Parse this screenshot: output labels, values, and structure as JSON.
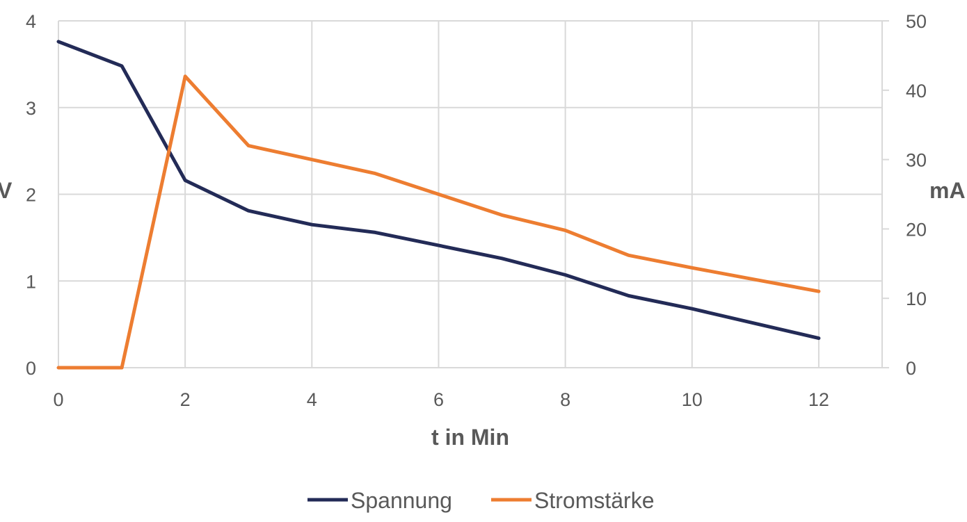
{
  "chart_data": {
    "type": "line",
    "xlabel": "t in Min",
    "ylabel": "V",
    "y2label": "mA",
    "xlim": [
      0,
      13
    ],
    "ylim": [
      0,
      4
    ],
    "y2lim": [
      0,
      50
    ],
    "xticks": [
      "0",
      "2",
      "4",
      "6",
      "8",
      "10",
      "12"
    ],
    "yticks": [
      "0",
      "1",
      "2",
      "3",
      "4"
    ],
    "y2ticks": [
      "0",
      "10",
      "20",
      "30",
      "40",
      "50"
    ],
    "grid": true,
    "legend_position": "bottom",
    "x": [
      0,
      1,
      2,
      3,
      4,
      5,
      6,
      7,
      8,
      9,
      10,
      11,
      12
    ],
    "series": [
      {
        "name": "Spannung",
        "axis": "left",
        "color": "#232b57",
        "values": [
          3.76,
          3.48,
          2.16,
          1.81,
          1.65,
          1.56,
          1.41,
          1.26,
          1.07,
          0.83,
          0.68,
          0.51,
          0.34
        ]
      },
      {
        "name": "Stromstärke",
        "axis": "right",
        "color": "#ed7d31",
        "values": [
          0,
          0,
          42,
          32,
          30,
          28,
          25,
          22,
          19.8,
          16.2,
          14.4,
          12.7,
          11
        ]
      }
    ]
  }
}
